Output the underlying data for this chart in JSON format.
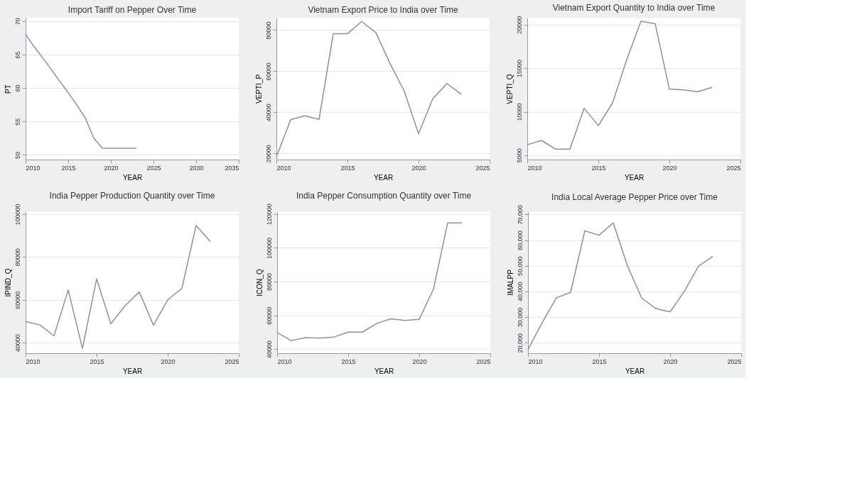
{
  "chart_data": [
    {
      "type": "line",
      "title": "Import Tariff on Pepper Over Time",
      "xlabel": "YEAR",
      "ylabel": "PT",
      "color": "#8c8fa8",
      "grid": "y",
      "x": [
        2010,
        2011,
        2012,
        2013,
        2014,
        2015,
        2016,
        2017,
        2018,
        2019,
        2020,
        2021,
        2022,
        2023
      ],
      "values": [
        68,
        66.2,
        64.5,
        62.8,
        61,
        59.3,
        57.5,
        55.5,
        52.5,
        51,
        51,
        51,
        51,
        51
      ],
      "xlim": [
        2010,
        2035
      ],
      "xticks": [
        2010,
        2015,
        2020,
        2025,
        2030,
        2035
      ],
      "ylim": [
        49.3,
        70.5
      ],
      "yticks": [
        50,
        55,
        60,
        65,
        70
      ]
    },
    {
      "type": "line",
      "title": "Vietnam Export Price to India over Time",
      "xlabel": "YEAR",
      "ylabel": "VEPTI_P",
      "color": "#8c8fa8",
      "grid": "y",
      "x": [
        2010,
        2011,
        2012,
        2013,
        2014,
        2015,
        2016,
        2017,
        2018,
        2019,
        2020,
        2021,
        2022,
        2023
      ],
      "values": [
        18300,
        36400,
        38300,
        36600,
        78200,
        78200,
        84200,
        78700,
        63600,
        50200,
        29600,
        46600,
        54000,
        48800
      ],
      "xlim": [
        2010,
        2025
      ],
      "xticks": [
        2010,
        2015,
        2020,
        2025
      ],
      "ylim": [
        17000,
        86000
      ],
      "yticks": [
        20000,
        40000,
        60000,
        80000
      ]
    },
    {
      "type": "line",
      "title": "Vietnam Export Quantity to India over Time",
      "xlabel": "YEAR",
      "ylabel": "VEPTI_Q",
      "color": "#8c8fa8",
      "grid": "y",
      "x": [
        2010,
        2011,
        2012,
        2013,
        2014,
        2015,
        2016,
        2017,
        2018,
        2019,
        2020,
        2021,
        2022,
        2023
      ],
      "values": [
        6200,
        6700,
        5700,
        5700,
        10400,
        8400,
        11000,
        16000,
        20400,
        20100,
        12600,
        12500,
        12300,
        12800
      ],
      "xlim": [
        2010,
        2025
      ],
      "xticks": [
        2010,
        2015,
        2020,
        2025
      ],
      "ylim": [
        4500,
        20800
      ],
      "yticks": [
        5000,
        10000,
        15000,
        20000
      ]
    },
    {
      "type": "line",
      "title": "India Pepper Production Quantity over Time",
      "xlabel": "YEAR",
      "ylabel": "IPIND_Q",
      "color": "#8c8fa8",
      "grid": "y",
      "x": [
        2010,
        2011,
        2012,
        2013,
        2014,
        2015,
        2016,
        2017,
        2018,
        2019,
        2020,
        2021,
        2022,
        2023
      ],
      "values": [
        49900,
        48300,
        43200,
        64600,
        37300,
        69800,
        48800,
        57300,
        63700,
        48200,
        60000,
        65400,
        94700,
        87200
      ],
      "xlim": [
        2010,
        2025
      ],
      "xticks": [
        2010,
        2015,
        2020,
        2025
      ],
      "ylim": [
        35100,
        101300
      ],
      "yticks": [
        40000,
        60000,
        80000,
        100000
      ]
    },
    {
      "type": "line",
      "title": "India Pepper Consumption Quantity over Time",
      "xlabel": "YEAR",
      "ylabel": "ICON_Q",
      "color": "#8c8fa8",
      "grid": "y",
      "x": [
        2010,
        2011,
        2012,
        2013,
        2014,
        2015,
        2016,
        2017,
        2018,
        2019,
        2020,
        2021,
        2022,
        2023
      ],
      "values": [
        49800,
        45000,
        46800,
        46500,
        47200,
        50100,
        50100,
        55200,
        58000,
        57000,
        57700,
        75600,
        114800,
        114800
      ],
      "xlim": [
        2010,
        2025
      ],
      "xticks": [
        2010,
        2015,
        2020,
        2025
      ],
      "ylim": [
        37600,
        121600
      ],
      "yticks": [
        40000,
        60000,
        80000,
        100000,
        120000
      ]
    },
    {
      "type": "line",
      "title": "India Local Average Pepper Price over Time",
      "xlabel": "YEAR",
      "ylabel": "IMALPP",
      "color": "#8c8fa8",
      "grid": "y",
      "x": [
        2010,
        2011,
        2012,
        2013,
        2014,
        2015,
        2016,
        2017,
        2018,
        2019,
        2020,
        2021,
        2022,
        2023
      ],
      "values": [
        17300,
        27800,
        37500,
        39600,
        63600,
        61900,
        66700,
        50000,
        37400,
        33300,
        32000,
        40000,
        49900,
        53600
      ],
      "xlim": [
        2010,
        2025
      ],
      "xticks": [
        2010,
        2015,
        2020,
        2025
      ],
      "ylim": [
        15900,
        71200
      ],
      "yticks": [
        {
          "value": 20000,
          "label": "20,000"
        },
        {
          "value": 30000,
          "label": "30,000"
        },
        {
          "value": 40000,
          "label": "40,000"
        },
        {
          "value": 50000,
          "label": "50,000"
        },
        {
          "value": 60000,
          "label": "60,000"
        },
        {
          "value": 70000,
          "label": "70,000"
        }
      ]
    }
  ]
}
